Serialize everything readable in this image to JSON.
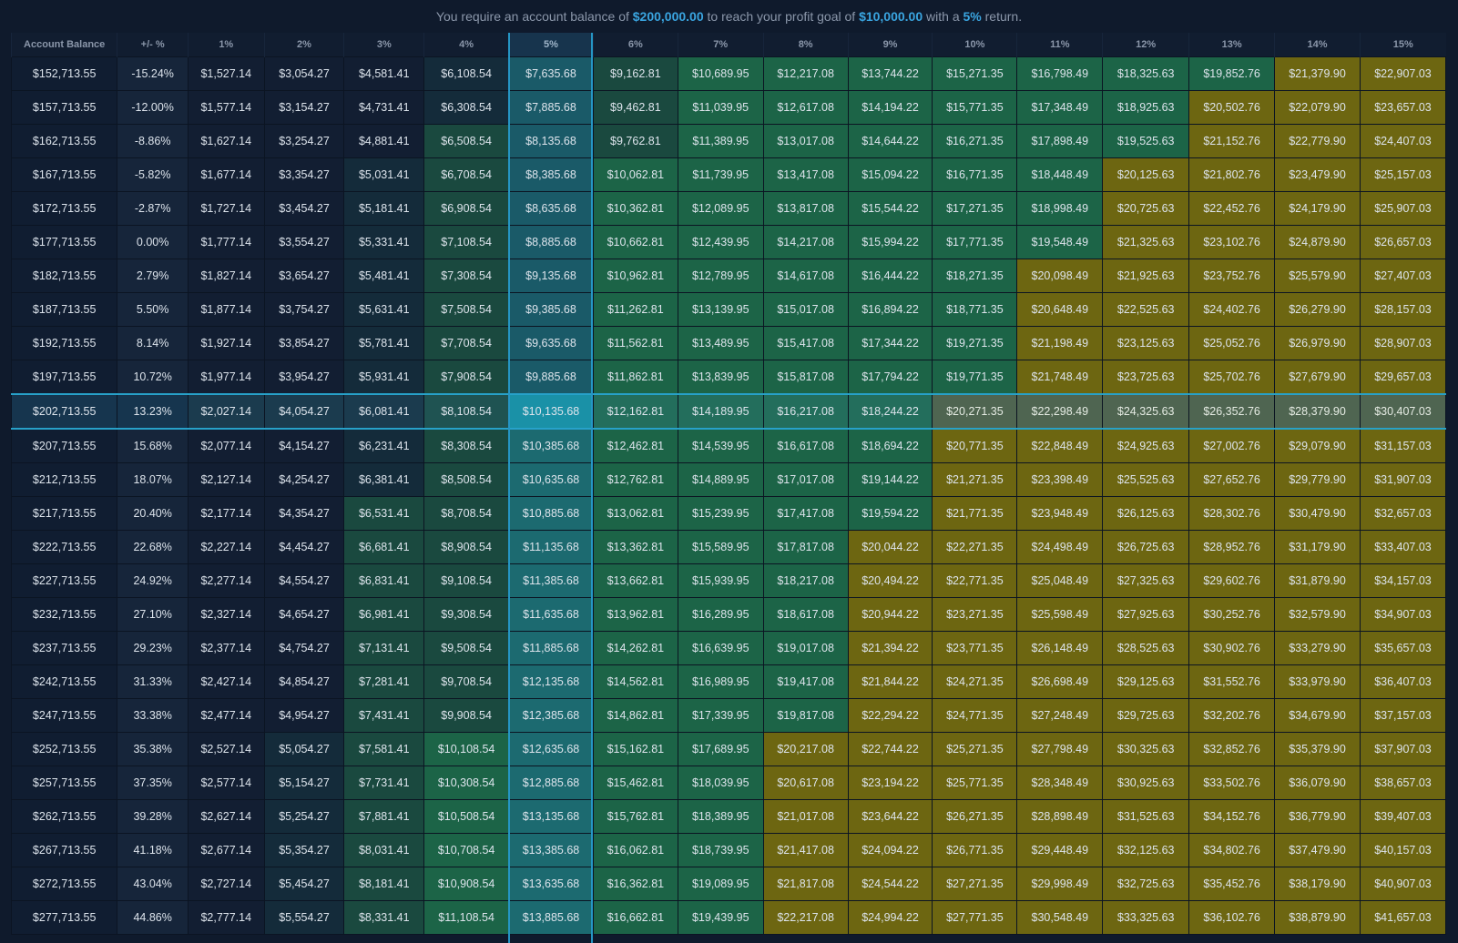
{
  "header": {
    "text1": "You require an account balance of",
    "balance": "$200,000.00",
    "text2": "to reach your profit goal of",
    "profit": "$10,000.00",
    "text3": "with a",
    "rate": "5%",
    "text4": "return."
  },
  "table": {
    "headers": [
      "Account Balance",
      "+/- %",
      "1%",
      "2%",
      "3%",
      "4%",
      "5%",
      "6%",
      "7%",
      "8%",
      "9%",
      "10%",
      "11%",
      "12%",
      "13%",
      "14%",
      "15%"
    ],
    "selected_column": "5%",
    "current_row_balance": "$202,713.55",
    "colors": {
      "background": "#0f1a2c",
      "below_goal": "#121e32",
      "near_goal": "#142b3a",
      "mid": "#1a493f",
      "above_goal": "#1c6447",
      "well_above_goal": "#6d6611",
      "selected_column": "#1a5a6c",
      "highlight": "#27a1c9",
      "header_accent": "#3aa5e0"
    },
    "rows": [
      {
        "balance": "$152,713.55",
        "change": "-15.24%",
        "values": [
          "$1,527.14",
          "$3,054.27",
          "$4,581.41",
          "$6,108.54",
          "$7,635.68",
          "$9,162.81",
          "$10,689.95",
          "$12,217.08",
          "$13,744.22",
          "$15,271.35",
          "$16,798.49",
          "$18,325.63",
          "$19,852.76",
          "$21,379.90",
          "$22,907.03"
        ]
      },
      {
        "balance": "$157,713.55",
        "change": "-12.00%",
        "values": [
          "$1,577.14",
          "$3,154.27",
          "$4,731.41",
          "$6,308.54",
          "$7,885.68",
          "$9,462.81",
          "$11,039.95",
          "$12,617.08",
          "$14,194.22",
          "$15,771.35",
          "$17,348.49",
          "$18,925.63",
          "$20,502.76",
          "$22,079.90",
          "$23,657.03"
        ]
      },
      {
        "balance": "$162,713.55",
        "change": "-8.86%",
        "values": [
          "$1,627.14",
          "$3,254.27",
          "$4,881.41",
          "$6,508.54",
          "$8,135.68",
          "$9,762.81",
          "$11,389.95",
          "$13,017.08",
          "$14,644.22",
          "$16,271.35",
          "$17,898.49",
          "$19,525.63",
          "$21,152.76",
          "$22,779.90",
          "$24,407.03"
        ]
      },
      {
        "balance": "$167,713.55",
        "change": "-5.82%",
        "values": [
          "$1,677.14",
          "$3,354.27",
          "$5,031.41",
          "$6,708.54",
          "$8,385.68",
          "$10,062.81",
          "$11,739.95",
          "$13,417.08",
          "$15,094.22",
          "$16,771.35",
          "$18,448.49",
          "$20,125.63",
          "$21,802.76",
          "$23,479.90",
          "$25,157.03"
        ]
      },
      {
        "balance": "$172,713.55",
        "change": "-2.87%",
        "values": [
          "$1,727.14",
          "$3,454.27",
          "$5,181.41",
          "$6,908.54",
          "$8,635.68",
          "$10,362.81",
          "$12,089.95",
          "$13,817.08",
          "$15,544.22",
          "$17,271.35",
          "$18,998.49",
          "$20,725.63",
          "$22,452.76",
          "$24,179.90",
          "$25,907.03"
        ]
      },
      {
        "balance": "$177,713.55",
        "change": "0.00%",
        "values": [
          "$1,777.14",
          "$3,554.27",
          "$5,331.41",
          "$7,108.54",
          "$8,885.68",
          "$10,662.81",
          "$12,439.95",
          "$14,217.08",
          "$15,994.22",
          "$17,771.35",
          "$19,548.49",
          "$21,325.63",
          "$23,102.76",
          "$24,879.90",
          "$26,657.03"
        ]
      },
      {
        "balance": "$182,713.55",
        "change": "2.79%",
        "values": [
          "$1,827.14",
          "$3,654.27",
          "$5,481.41",
          "$7,308.54",
          "$9,135.68",
          "$10,962.81",
          "$12,789.95",
          "$14,617.08",
          "$16,444.22",
          "$18,271.35",
          "$20,098.49",
          "$21,925.63",
          "$23,752.76",
          "$25,579.90",
          "$27,407.03"
        ]
      },
      {
        "balance": "$187,713.55",
        "change": "5.50%",
        "values": [
          "$1,877.14",
          "$3,754.27",
          "$5,631.41",
          "$7,508.54",
          "$9,385.68",
          "$11,262.81",
          "$13,139.95",
          "$15,017.08",
          "$16,894.22",
          "$18,771.35",
          "$20,648.49",
          "$22,525.63",
          "$24,402.76",
          "$26,279.90",
          "$28,157.03"
        ]
      },
      {
        "balance": "$192,713.55",
        "change": "8.14%",
        "values": [
          "$1,927.14",
          "$3,854.27",
          "$5,781.41",
          "$7,708.54",
          "$9,635.68",
          "$11,562.81",
          "$13,489.95",
          "$15,417.08",
          "$17,344.22",
          "$19,271.35",
          "$21,198.49",
          "$23,125.63",
          "$25,052.76",
          "$26,979.90",
          "$28,907.03"
        ]
      },
      {
        "balance": "$197,713.55",
        "change": "10.72%",
        "values": [
          "$1,977.14",
          "$3,954.27",
          "$5,931.41",
          "$7,908.54",
          "$9,885.68",
          "$11,862.81",
          "$13,839.95",
          "$15,817.08",
          "$17,794.22",
          "$19,771.35",
          "$21,748.49",
          "$23,725.63",
          "$25,702.76",
          "$27,679.90",
          "$29,657.03"
        ]
      },
      {
        "balance": "$202,713.55",
        "change": "13.23%",
        "values": [
          "$2,027.14",
          "$4,054.27",
          "$6,081.41",
          "$8,108.54",
          "$10,135.68",
          "$12,162.81",
          "$14,189.95",
          "$16,217.08",
          "$18,244.22",
          "$20,271.35",
          "$22,298.49",
          "$24,325.63",
          "$26,352.76",
          "$28,379.90",
          "$30,407.03"
        ]
      },
      {
        "balance": "$207,713.55",
        "change": "15.68%",
        "values": [
          "$2,077.14",
          "$4,154.27",
          "$6,231.41",
          "$8,308.54",
          "$10,385.68",
          "$12,462.81",
          "$14,539.95",
          "$16,617.08",
          "$18,694.22",
          "$20,771.35",
          "$22,848.49",
          "$24,925.63",
          "$27,002.76",
          "$29,079.90",
          "$31,157.03"
        ]
      },
      {
        "balance": "$212,713.55",
        "change": "18.07%",
        "values": [
          "$2,127.14",
          "$4,254.27",
          "$6,381.41",
          "$8,508.54",
          "$10,635.68",
          "$12,762.81",
          "$14,889.95",
          "$17,017.08",
          "$19,144.22",
          "$21,271.35",
          "$23,398.49",
          "$25,525.63",
          "$27,652.76",
          "$29,779.90",
          "$31,907.03"
        ]
      },
      {
        "balance": "$217,713.55",
        "change": "20.40%",
        "values": [
          "$2,177.14",
          "$4,354.27",
          "$6,531.41",
          "$8,708.54",
          "$10,885.68",
          "$13,062.81",
          "$15,239.95",
          "$17,417.08",
          "$19,594.22",
          "$21,771.35",
          "$23,948.49",
          "$26,125.63",
          "$28,302.76",
          "$30,479.90",
          "$32,657.03"
        ]
      },
      {
        "balance": "$222,713.55",
        "change": "22.68%",
        "values": [
          "$2,227.14",
          "$4,454.27",
          "$6,681.41",
          "$8,908.54",
          "$11,135.68",
          "$13,362.81",
          "$15,589.95",
          "$17,817.08",
          "$20,044.22",
          "$22,271.35",
          "$24,498.49",
          "$26,725.63",
          "$28,952.76",
          "$31,179.90",
          "$33,407.03"
        ]
      },
      {
        "balance": "$227,713.55",
        "change": "24.92%",
        "values": [
          "$2,277.14",
          "$4,554.27",
          "$6,831.41",
          "$9,108.54",
          "$11,385.68",
          "$13,662.81",
          "$15,939.95",
          "$18,217.08",
          "$20,494.22",
          "$22,771.35",
          "$25,048.49",
          "$27,325.63",
          "$29,602.76",
          "$31,879.90",
          "$34,157.03"
        ]
      },
      {
        "balance": "$232,713.55",
        "change": "27.10%",
        "values": [
          "$2,327.14",
          "$4,654.27",
          "$6,981.41",
          "$9,308.54",
          "$11,635.68",
          "$13,962.81",
          "$16,289.95",
          "$18,617.08",
          "$20,944.22",
          "$23,271.35",
          "$25,598.49",
          "$27,925.63",
          "$30,252.76",
          "$32,579.90",
          "$34,907.03"
        ]
      },
      {
        "balance": "$237,713.55",
        "change": "29.23%",
        "values": [
          "$2,377.14",
          "$4,754.27",
          "$7,131.41",
          "$9,508.54",
          "$11,885.68",
          "$14,262.81",
          "$16,639.95",
          "$19,017.08",
          "$21,394.22",
          "$23,771.35",
          "$26,148.49",
          "$28,525.63",
          "$30,902.76",
          "$33,279.90",
          "$35,657.03"
        ]
      },
      {
        "balance": "$242,713.55",
        "change": "31.33%",
        "values": [
          "$2,427.14",
          "$4,854.27",
          "$7,281.41",
          "$9,708.54",
          "$12,135.68",
          "$14,562.81",
          "$16,989.95",
          "$19,417.08",
          "$21,844.22",
          "$24,271.35",
          "$26,698.49",
          "$29,125.63",
          "$31,552.76",
          "$33,979.90",
          "$36,407.03"
        ]
      },
      {
        "balance": "$247,713.55",
        "change": "33.38%",
        "values": [
          "$2,477.14",
          "$4,954.27",
          "$7,431.41",
          "$9,908.54",
          "$12,385.68",
          "$14,862.81",
          "$17,339.95",
          "$19,817.08",
          "$22,294.22",
          "$24,771.35",
          "$27,248.49",
          "$29,725.63",
          "$32,202.76",
          "$34,679.90",
          "$37,157.03"
        ]
      },
      {
        "balance": "$252,713.55",
        "change": "35.38%",
        "values": [
          "$2,527.14",
          "$5,054.27",
          "$7,581.41",
          "$10,108.54",
          "$12,635.68",
          "$15,162.81",
          "$17,689.95",
          "$20,217.08",
          "$22,744.22",
          "$25,271.35",
          "$27,798.49",
          "$30,325.63",
          "$32,852.76",
          "$35,379.90",
          "$37,907.03"
        ]
      },
      {
        "balance": "$257,713.55",
        "change": "37.35%",
        "values": [
          "$2,577.14",
          "$5,154.27",
          "$7,731.41",
          "$10,308.54",
          "$12,885.68",
          "$15,462.81",
          "$18,039.95",
          "$20,617.08",
          "$23,194.22",
          "$25,771.35",
          "$28,348.49",
          "$30,925.63",
          "$33,502.76",
          "$36,079.90",
          "$38,657.03"
        ]
      },
      {
        "balance": "$262,713.55",
        "change": "39.28%",
        "values": [
          "$2,627.14",
          "$5,254.27",
          "$7,881.41",
          "$10,508.54",
          "$13,135.68",
          "$15,762.81",
          "$18,389.95",
          "$21,017.08",
          "$23,644.22",
          "$26,271.35",
          "$28,898.49",
          "$31,525.63",
          "$34,152.76",
          "$36,779.90",
          "$39,407.03"
        ]
      },
      {
        "balance": "$267,713.55",
        "change": "41.18%",
        "values": [
          "$2,677.14",
          "$5,354.27",
          "$8,031.41",
          "$10,708.54",
          "$13,385.68",
          "$16,062.81",
          "$18,739.95",
          "$21,417.08",
          "$24,094.22",
          "$26,771.35",
          "$29,448.49",
          "$32,125.63",
          "$34,802.76",
          "$37,479.90",
          "$40,157.03"
        ]
      },
      {
        "balance": "$272,713.55",
        "change": "43.04%",
        "values": [
          "$2,727.14",
          "$5,454.27",
          "$8,181.41",
          "$10,908.54",
          "$13,635.68",
          "$16,362.81",
          "$19,089.95",
          "$21,817.08",
          "$24,544.22",
          "$27,271.35",
          "$29,998.49",
          "$32,725.63",
          "$35,452.76",
          "$38,179.90",
          "$40,907.03"
        ]
      },
      {
        "balance": "$277,713.55",
        "change": "44.86%",
        "values": [
          "$2,777.14",
          "$5,554.27",
          "$8,331.41",
          "$11,108.54",
          "$13,885.68",
          "$16,662.81",
          "$19,439.95",
          "$22,217.08",
          "$24,994.22",
          "$27,771.35",
          "$30,548.49",
          "$33,325.63",
          "$36,102.76",
          "$38,879.90",
          "$41,657.03"
        ]
      }
    ]
  }
}
